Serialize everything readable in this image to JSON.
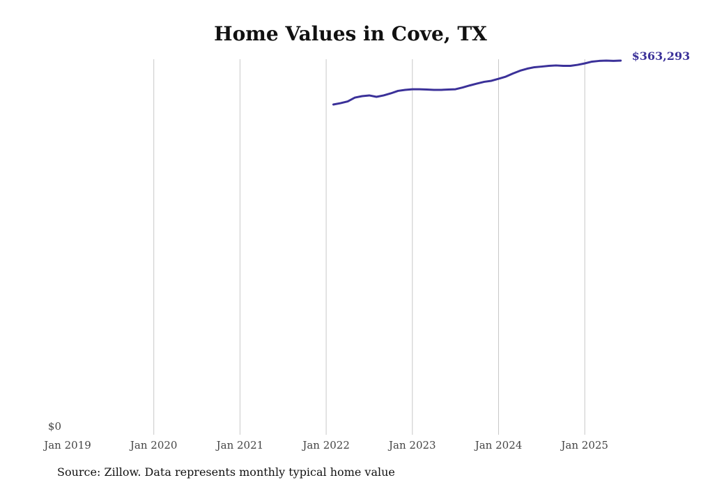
{
  "chart_data": {
    "type": "line",
    "title": "Home Values in Cove, TX",
    "source": "Source: Zillow. Data represents monthly typical home value",
    "xlabel": "",
    "ylabel": "",
    "x_ticks": [
      "Jan 2019",
      "Jan 2020",
      "Jan 2021",
      "Jan 2022",
      "Jan 2023",
      "Jan 2024",
      "Jan 2025"
    ],
    "y_ticks": [
      "$0"
    ],
    "ylim": [
      0,
      363293
    ],
    "xlim_start": "2019-01",
    "grid": "vertical",
    "end_label": "$363,293",
    "line_color": "#3b3199",
    "series": [
      {
        "name": "Typical home value",
        "start": "2022-02",
        "values": [
          320660,
          322000,
          323700,
          327400,
          328800,
          329500,
          328100,
          329500,
          331500,
          333900,
          334900,
          335500,
          335500,
          335200,
          334900,
          334900,
          335200,
          335500,
          337200,
          339200,
          341000,
          342700,
          343700,
          345700,
          347700,
          350800,
          353500,
          355500,
          356900,
          357500,
          358200,
          358600,
          358200,
          358200,
          359200,
          360600,
          362300,
          363000,
          363300,
          363000,
          363293
        ]
      }
    ]
  }
}
